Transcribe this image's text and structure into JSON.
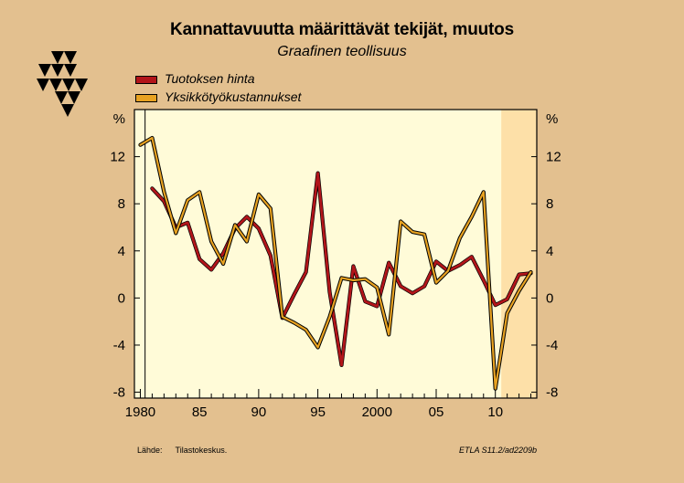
{
  "header": {
    "title": "Kannattavuutta määrittävät tekijät, muutos",
    "subtitle": "Graafinen teollisuus"
  },
  "footer": {
    "source_label": "Lähde:",
    "source_value": "Tilastokeskus.",
    "code": "ETLA S11.2/ad2209b"
  },
  "colors": {
    "background": "#e3c08f",
    "plot_background": "#fffbd8",
    "forecast_shading": "#fde0a8",
    "series1": "#b2151a",
    "series2": "#e8a221"
  },
  "chart_data": {
    "type": "line",
    "title": "Kannattavuutta määrittävät tekijät, muutos",
    "subtitle": "Graafinen teollisuus",
    "ylabel_left": "%",
    "ylabel_right": "%",
    "xlim": [
      1979.5,
      2013.5
    ],
    "ylim": [
      -8.5,
      16
    ],
    "yticks": [
      -8,
      -4,
      0,
      4,
      8,
      12
    ],
    "ytick_labels": [
      "-8",
      "-4",
      "0",
      "4",
      "8",
      "12"
    ],
    "xticks": [
      1980,
      1985,
      1990,
      1995,
      2000,
      2005,
      2010
    ],
    "xtick_labels": [
      "1980",
      "85",
      "90",
      "95",
      "2000",
      "05",
      "10"
    ],
    "forecast_from": 2010.5,
    "legend_position": "top-left",
    "grid": false,
    "series": [
      {
        "name": "Tuotoksen hinta",
        "color": "#b2151a",
        "x": [
          1981,
          1982,
          1983,
          1984,
          1985,
          1986,
          1987,
          1988,
          1989,
          1990,
          1991,
          1992,
          1993,
          1994,
          1995,
          1996,
          1997,
          1998,
          1999,
          2000,
          2001,
          2002,
          2003,
          2004,
          2005,
          2006,
          2007,
          2008,
          2009,
          2010,
          2011,
          2012,
          2013
        ],
        "values": [
          9.3,
          8.2,
          6.0,
          6.4,
          3.3,
          2.4,
          3.8,
          5.9,
          6.9,
          5.9,
          3.6,
          -1.7,
          0.3,
          2.2,
          10.6,
          0.5,
          -5.7,
          2.7,
          -0.3,
          -0.7,
          3.0,
          1.0,
          0.4,
          1.0,
          3.1,
          2.3,
          2.8,
          3.5,
          1.5,
          -0.6,
          -0.1,
          2.0,
          2.1
        ]
      },
      {
        "name": "Yksikkötyökustannukset",
        "color": "#e8a221",
        "x": [
          1980,
          1981,
          1982,
          1983,
          1984,
          1985,
          1986,
          1987,
          1988,
          1989,
          1990,
          1991,
          1992,
          1993,
          1994,
          1995,
          1996,
          1997,
          1998,
          1999,
          2000,
          2001,
          2002,
          2003,
          2004,
          2005,
          2006,
          2007,
          2008,
          2009,
          2010,
          2011,
          2012,
          2013
        ],
        "values": [
          13.0,
          13.6,
          9.0,
          5.5,
          8.3,
          9.0,
          4.8,
          2.9,
          6.2,
          4.8,
          8.8,
          7.6,
          -1.6,
          -2.1,
          -2.7,
          -4.2,
          -1.6,
          1.7,
          1.5,
          1.6,
          0.9,
          -3.1,
          6.5,
          5.6,
          5.4,
          1.3,
          2.3,
          5.1,
          6.9,
          9.0,
          -7.7,
          -1.3,
          0.6,
          2.2
        ]
      }
    ]
  }
}
